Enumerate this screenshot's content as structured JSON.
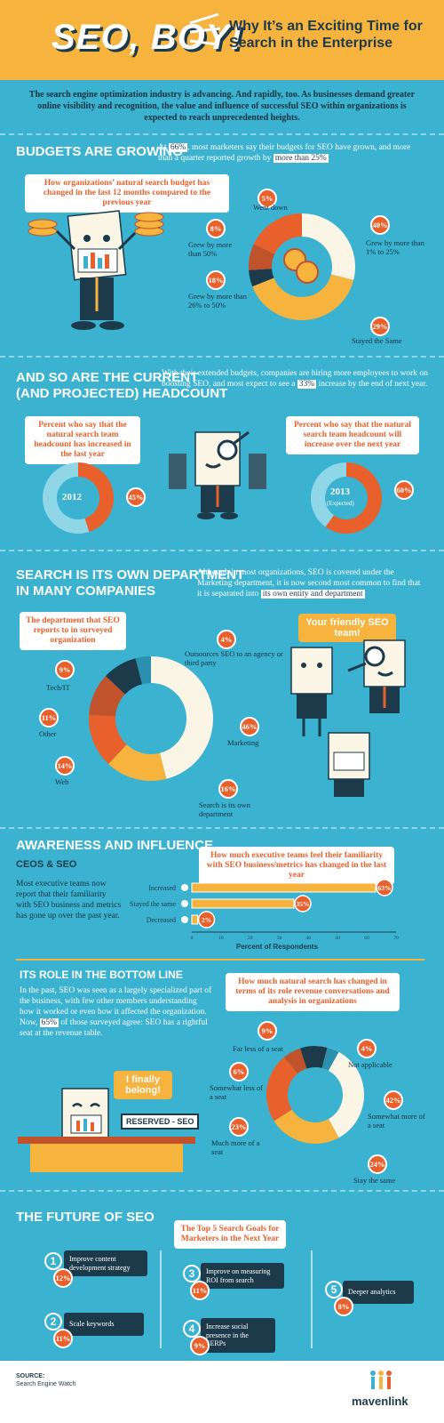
{
  "header": {
    "title": "SEO, BOY!",
    "subtitle": "Why It’s an Exciting Time for Search in the Enterprise"
  },
  "intro": "The search engine optimization industry is advancing. And rapidly, too. As businesses demand greater online visibility and recognition, the value and influence of successful SEO within organizations is expected to reach unprecedented heights.",
  "budgets": {
    "title": "BUDGETS ARE GROWING",
    "text_pre": "At",
    "pct": "66%",
    "text_mid": ", most marketers say their budgets for SEO have grown, and more than a quarter reported growth by",
    "highlight": "more than 25%",
    "caption": "How organizations’ natural search budget has changed in the last 12 months compared to the previous year"
  },
  "headcount": {
    "title1": "AND SO ARE THE CURRENT",
    "title2": "(and Projected) HEADCOUNT",
    "text_pre": "With their extended budgets, companies are hiring more employees to work on boosting SEO, and most expect to see a",
    "pct": "33%",
    "text_post": "increase by the end of next year.",
    "cap_left": "Percent who say that the natural search team headcount has increased in the last year",
    "cap_right": "Percent who say that the natural search team headcount will increase over the next year",
    "donut_left_label": "2012",
    "donut_left_pct": "45%",
    "donut_right_label": "2013",
    "donut_right_sub": "(Expected)",
    "donut_right_pct": "60%"
  },
  "department": {
    "title1": "SEARCH IS ITS OWN DEPARTMENT",
    "title2": "IN MANY COMPANIES",
    "text": "Although in most organizations, SEO is covered under the Marketing department, it is now second most common to find that it is separated into",
    "highlight": "its own entity and department",
    "caption": "The department that SEO reports to in surveyed organization",
    "bubble": "Your friendly SEO team!"
  },
  "awareness": {
    "title": "AWARENESS AND INFLUENCE",
    "subtitle": "CEOs & SEO",
    "text": "Most executive teams now report that their familiarity with SEO business and metrics has gone up over the past year.",
    "caption": "How much executive teams feel their familiarity with SEO business/metrics has changed in the last year",
    "xlabel": "Percent of Respondents"
  },
  "bottomline": {
    "title": "ITS ROLE IN THE BOTTOM LINE",
    "text_pre": "In the past, SEO was seen as a largely specialized part of the business, with few other members understanding how it worked or even how it affected the organization. Now,",
    "pct": "65%",
    "text_post": "of those surveyed agree: SEO has a rightful seat at the revenue table.",
    "caption": "How much natural search has changed in terms of its role revenue conversations and analysis in organizations",
    "bubble": "I finally belong!",
    "sign": "RESERVED - SEO"
  },
  "future": {
    "title": "THE FUTURE OF SEO",
    "caption": "The Top 5 Search Goals for Marketers in the Next Year"
  },
  "footer": {
    "source_label": "SOURCE:",
    "source": "Search Engine Watch",
    "brand": "mavenlink"
  },
  "colors": {
    "bg": "#3bb2d0",
    "orange": "#e8612c",
    "yellow": "#f6b33d",
    "cream": "#fbf5e6",
    "navy": "#1d3a4a",
    "rust": "#c0532b",
    "light": "#8fd6e6"
  },
  "chart_data": [
    {
      "type": "pie",
      "title": "How organizations’ natural search budget has changed in the last 12 months compared to the previous year",
      "slices": [
        {
          "label": "Stayed the Same",
          "value": 29
        },
        {
          "label": "Grew by more than 1% to 25%",
          "value": 40
        },
        {
          "label": "Went down",
          "value": 5
        },
        {
          "label": "Grew by more than 50%",
          "value": 8
        },
        {
          "label": "Grew by more than 26% to 50%",
          "value": 18
        }
      ]
    },
    {
      "type": "pie",
      "title": "Percent who say that the natural search team headcount has increased in the last year",
      "slices": [
        {
          "label": "2012",
          "value": 45
        }
      ]
    },
    {
      "type": "pie",
      "title": "Percent who say that the natural search team headcount will increase over the next year",
      "slices": [
        {
          "label": "2013 (Expected)",
          "value": 60
        }
      ]
    },
    {
      "type": "pie",
      "title": "The department that SEO reports to in surveyed organization",
      "slices": [
        {
          "label": "Marketing",
          "value": 46
        },
        {
          "label": "Search is its own department",
          "value": 16
        },
        {
          "label": "Web",
          "value": 14
        },
        {
          "label": "Other",
          "value": 11
        },
        {
          "label": "Tech/IT",
          "value": 9
        },
        {
          "label": "Outsources SEO to an agency or third party",
          "value": 4
        }
      ]
    },
    {
      "type": "bar",
      "title": "How much executive teams feel their familiarity with SEO business/metrics has changed in the last year",
      "categories": [
        "Increased",
        "Stayed the same",
        "Decreased"
      ],
      "values": [
        63,
        35,
        2
      ],
      "xlabel": "Percent of Respondents",
      "xlim": [
        0,
        70
      ],
      "ticks": [
        "0",
        "10",
        "20",
        "30",
        "40",
        "50",
        "60",
        "70"
      ]
    },
    {
      "type": "pie",
      "title": "How much natural search has changed in terms of its role revenue conversations and analysis in organizations",
      "slices": [
        {
          "label": "Somewhat more of a seat",
          "value": 42
        },
        {
          "label": "Stay the same",
          "value": 24
        },
        {
          "label": "Much more of a seat",
          "value": 23
        },
        {
          "label": "Somewhat less of a seat",
          "value": 6
        },
        {
          "label": "Far less of a seat",
          "value": 9
        },
        {
          "label": "Not applicable",
          "value": 4
        }
      ]
    },
    {
      "type": "table",
      "title": "The Top 5 Search Goals for Marketers in the Next Year",
      "rows": [
        {
          "rank": "1",
          "goal": "Improve content development strategy",
          "pct": "12%"
        },
        {
          "rank": "2",
          "goal": "Scale keywords",
          "pct": "11%"
        },
        {
          "rank": "3",
          "goal": "Improve on measuring ROI from search",
          "pct": "11%"
        },
        {
          "rank": "4",
          "goal": "Increase social presence in the SERPs",
          "pct": "9%"
        },
        {
          "rank": "5",
          "goal": "Deeper analytics",
          "pct": "8%"
        }
      ]
    }
  ]
}
